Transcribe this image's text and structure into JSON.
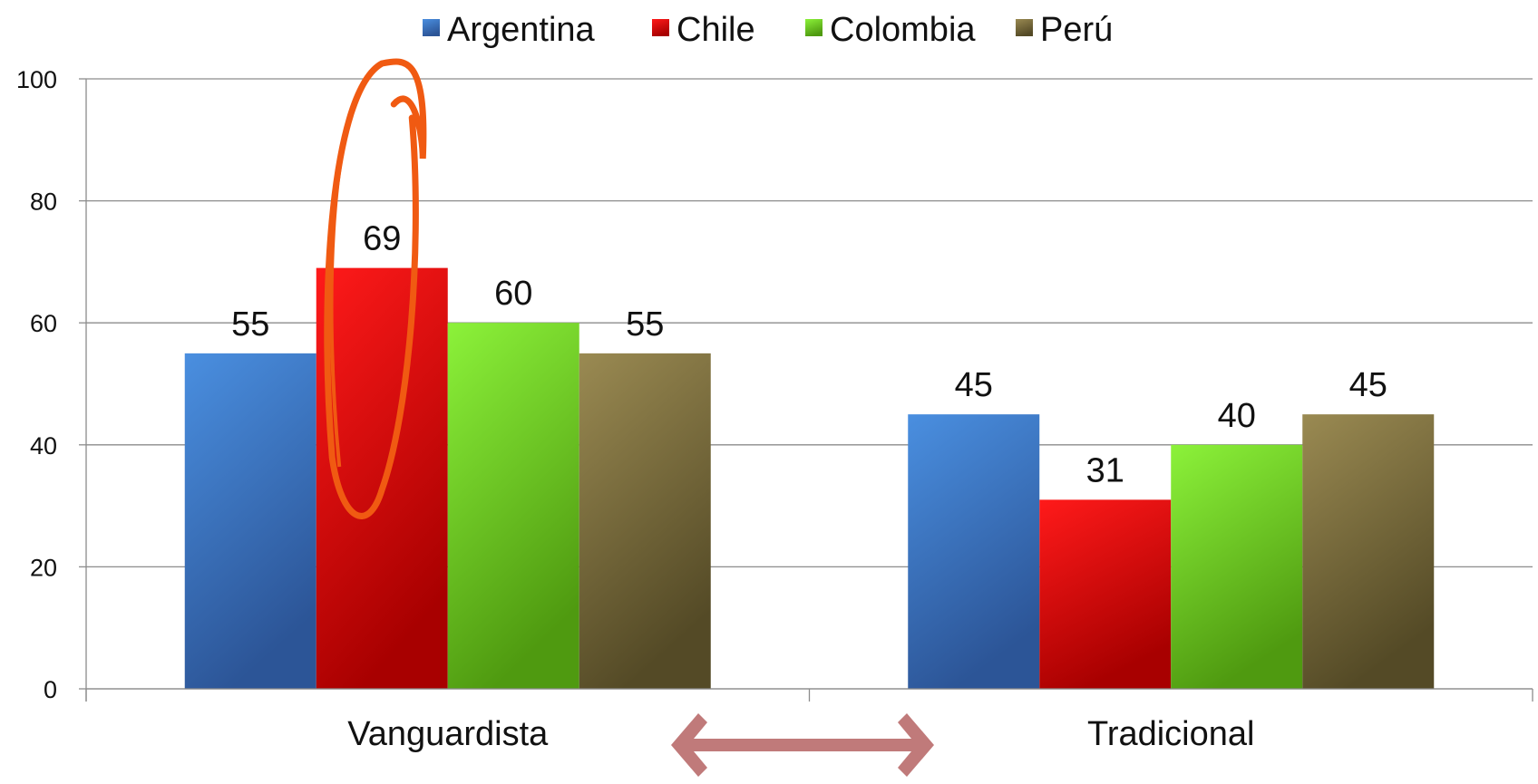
{
  "chart_data": {
    "type": "bar",
    "categories": [
      "Vanguardista",
      "Tradicional"
    ],
    "series": [
      {
        "name": "Argentina",
        "values": [
          55,
          45
        ]
      },
      {
        "name": "Chile",
        "values": [
          69,
          31
        ]
      },
      {
        "name": "Colombia",
        "values": [
          60,
          40
        ]
      },
      {
        "name": "Perú",
        "values": [
          55,
          45
        ]
      }
    ],
    "series_colors": {
      "Argentina": [
        "#4a8fe0",
        "#2c5597"
      ],
      "Chile": [
        "#ff1a1a",
        "#a80000"
      ],
      "Colombia": [
        "#8cf23a",
        "#4f9a10"
      ],
      "Perú": [
        "#9a8a52",
        "#544a26"
      ]
    },
    "ylim": [
      0,
      100
    ],
    "yticks": [
      0,
      20,
      40,
      60,
      80,
      100
    ],
    "grid": true,
    "legend": "top",
    "annotations": {
      "highlight": "orange loop circling the Chile Vanguardista bar",
      "arrow": "double-headed arrow between the two categories",
      "highlight_color": "#f05a12",
      "arrow_color": "#c07a7a"
    }
  }
}
